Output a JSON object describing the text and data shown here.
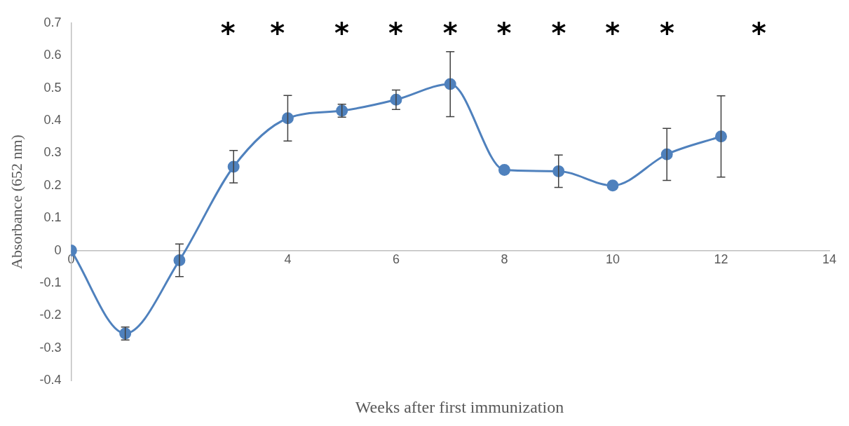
{
  "chart_data": {
    "type": "line",
    "xlabel": "Weeks after first immunization",
    "ylabel": "Absorbance (652 nm)",
    "x": [
      0,
      1,
      2,
      3,
      4,
      5,
      6,
      7,
      8,
      9,
      10,
      11,
      12
    ],
    "series": [
      {
        "color": "#4f81bd",
        "values": [
          0,
          -0.255,
          -0.03,
          0.258,
          0.407,
          0.43,
          0.464,
          0.512,
          0.248,
          0.244,
          0.2,
          0.296,
          0.351
        ],
        "errors": [
          null,
          0.02,
          0.05,
          0.05,
          0.07,
          0.02,
          0.03,
          0.1,
          null,
          0.05,
          null,
          0.08,
          0.125
        ]
      }
    ],
    "xlim": [
      0,
      14
    ],
    "xticks": [
      0,
      2,
      4,
      6,
      8,
      10,
      12,
      14
    ],
    "ylim": [
      -0.4,
      0.7
    ],
    "yticks": [
      -0.4,
      -0.3,
      -0.2,
      -0.1,
      0,
      0.1,
      0.2,
      0.3,
      0.4,
      0.5,
      0.6,
      0.7
    ],
    "grid": false,
    "legend": false,
    "marker": "circle",
    "line_style": "solid",
    "annotations": [
      "*",
      "*",
      "*",
      "*",
      "*",
      "*",
      "*",
      "*",
      "*",
      "*"
    ]
  }
}
